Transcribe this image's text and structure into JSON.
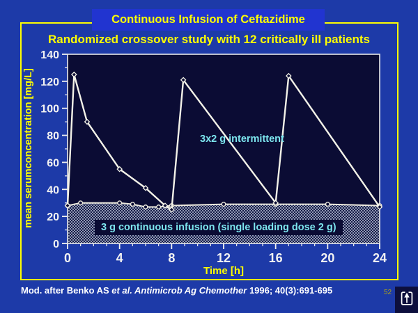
{
  "slide": {
    "title": "Continuous Infusion of Ceftazidime",
    "subtitle": "Randomized crossover study with 12 critically ill patients",
    "citation": {
      "prefix": "Mod. after Benko AS ",
      "italic": "et al. Antimicrob Ag Chemother",
      "suffix": " 1996; 40(3):691-695"
    },
    "page_number": "52",
    "nav_icon": "return-up-icon"
  },
  "colors": {
    "slide_bg": "#1d3aa8",
    "title_box_bg": "#2134d0",
    "frame_yellow": "#ffff00",
    "plot_bg": "#0b0c34",
    "curve_white": "#f3f2e8",
    "label_cyan": "#7de6ef",
    "stipple_dot": "#b6bfd4",
    "citation_white": "#ffffff",
    "page_num_olive": "#a9a01c"
  },
  "chart_data": {
    "type": "line",
    "title": "",
    "xlabel": "Time [h]",
    "ylabel": "mean serumconcentration [mg/L]",
    "xlim": [
      0,
      24
    ],
    "ylim": [
      0,
      140
    ],
    "x_ticks": [
      0,
      4,
      8,
      12,
      16,
      20,
      24
    ],
    "x_minor_step": 1,
    "y_ticks": [
      0,
      20,
      40,
      60,
      80,
      100,
      120,
      140
    ],
    "y_minor_step": 10,
    "grid": false,
    "legend_position": "annotations-on-plot",
    "series": [
      {
        "name": "intermittent",
        "label": "3x2 g intermittent",
        "marker": "diamond",
        "points": [
          [
            0,
            28
          ],
          [
            0.5,
            125
          ],
          [
            1.5,
            90
          ],
          [
            4,
            55
          ],
          [
            6,
            41
          ],
          [
            7.5,
            28
          ],
          [
            8,
            25
          ],
          [
            8.9,
            121
          ],
          [
            16,
            30
          ],
          [
            17,
            124
          ],
          [
            24,
            27
          ]
        ]
      },
      {
        "name": "continuous-infusion",
        "label": "3 g continuous infusion (single loading dose 2 g)",
        "marker": "circle",
        "area_fill": "stipple",
        "points": [
          [
            0,
            28
          ],
          [
            1,
            30
          ],
          [
            4,
            30
          ],
          [
            5,
            29
          ],
          [
            6,
            27
          ],
          [
            7,
            27
          ],
          [
            8,
            28
          ],
          [
            12,
            29
          ],
          [
            16,
            29
          ],
          [
            20,
            29
          ],
          [
            24,
            28
          ]
        ]
      }
    ]
  }
}
